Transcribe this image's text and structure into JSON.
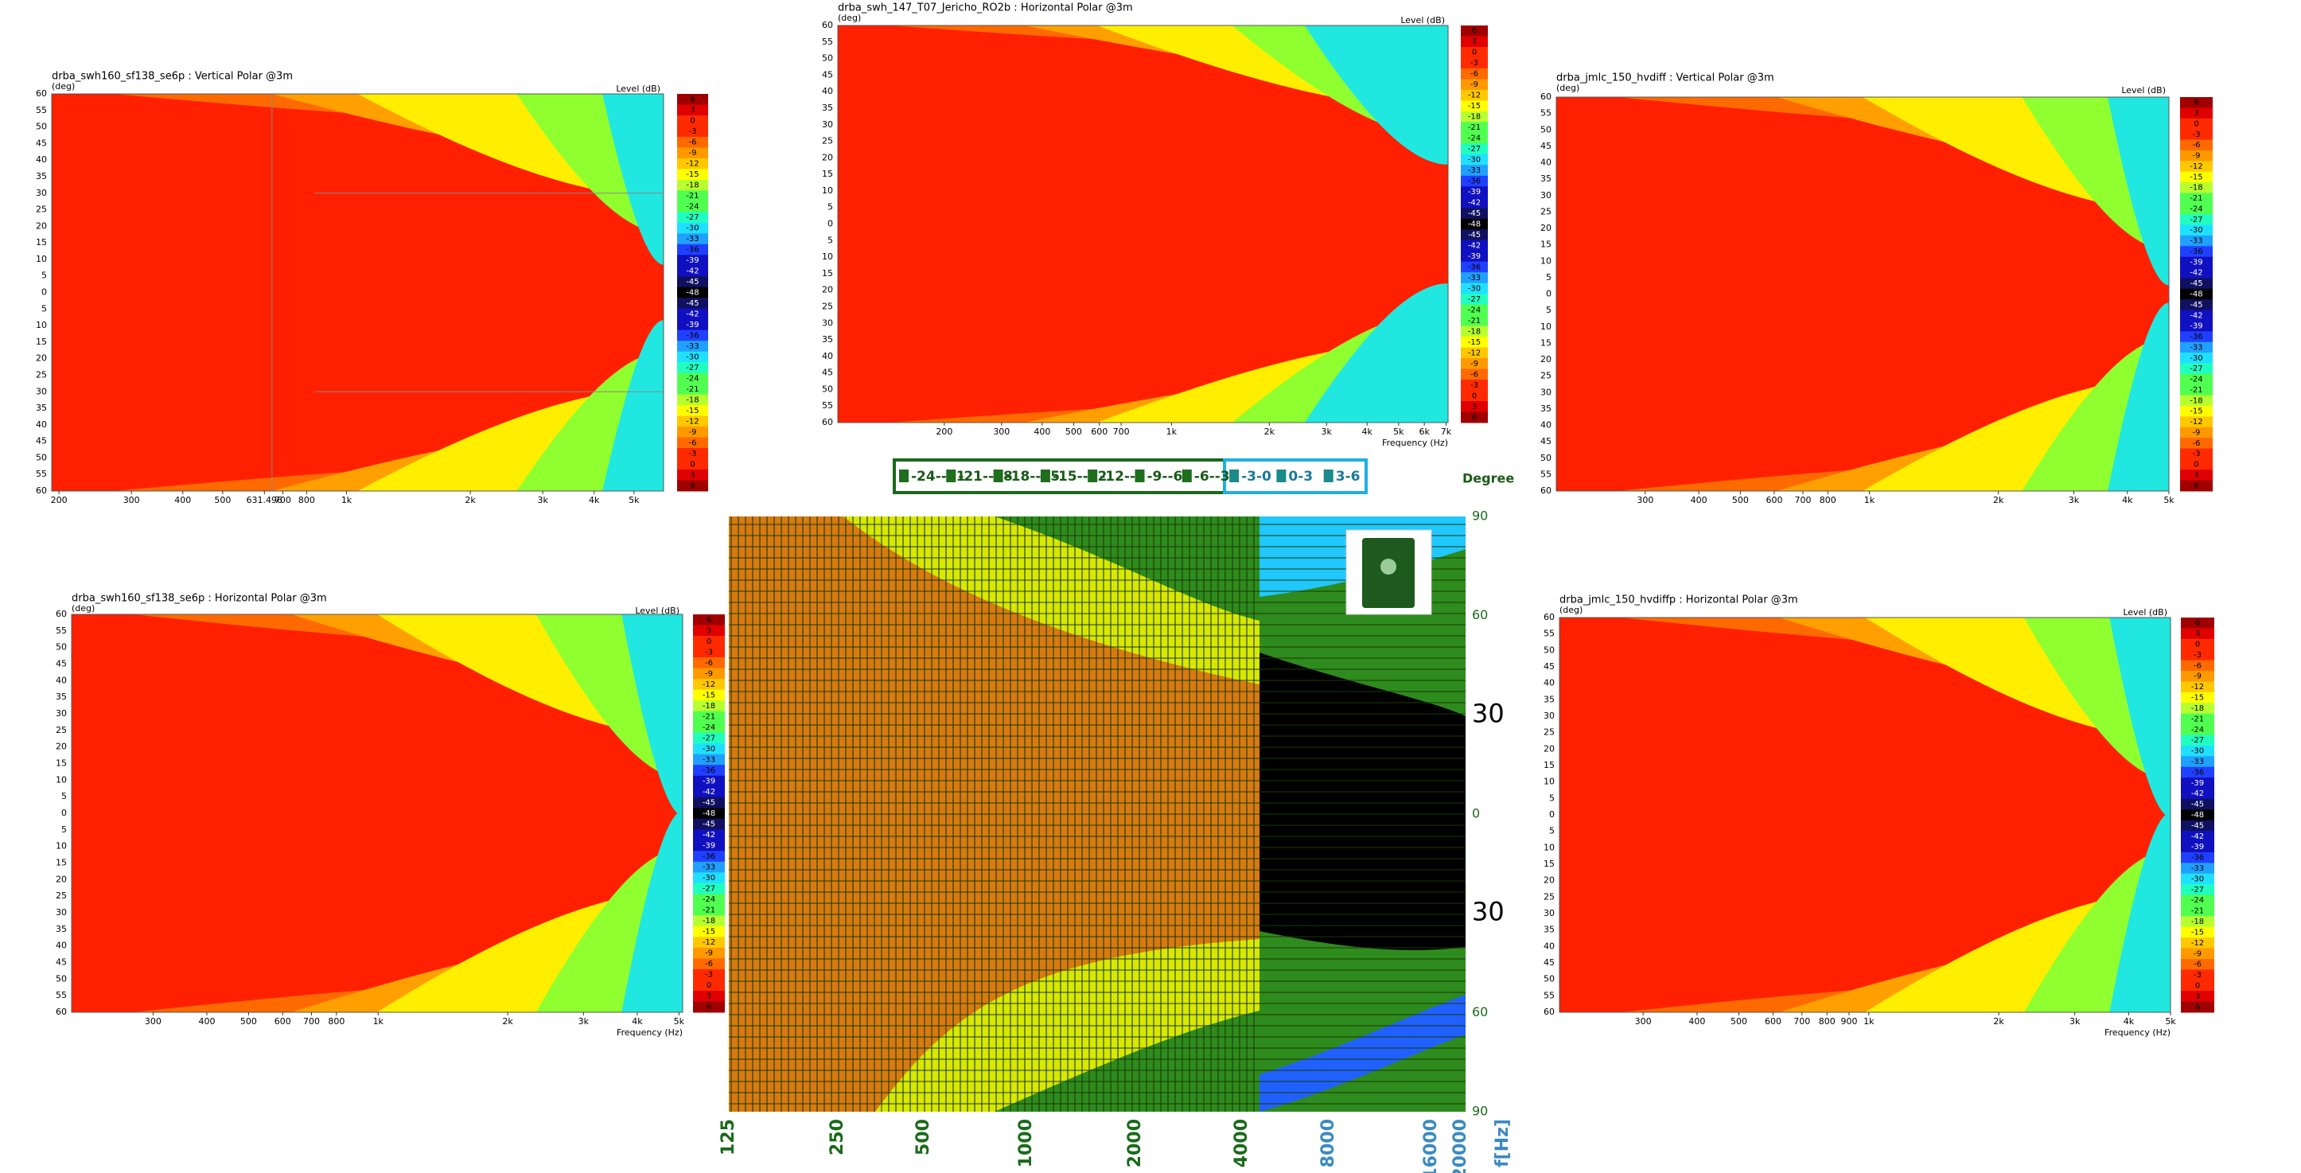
{
  "y_tick_labels": [
    "60",
    "55",
    "50",
    "45",
    "40",
    "35",
    "30",
    "25",
    "20",
    "15",
    "10",
    "5",
    "0",
    "5",
    "10",
    "15",
    "20",
    "25",
    "30",
    "35",
    "40",
    "45",
    "50",
    "55",
    "60"
  ],
  "colorbar_labels": [
    "6",
    "3",
    "0",
    "-3",
    "-6",
    "-9",
    "-12",
    "-15",
    "-18",
    "-21",
    "-24",
    "-27",
    "-30",
    "-33",
    "-36",
    "-39",
    "-42",
    "-45",
    "-48",
    "-45",
    "-42",
    "-39",
    "-36",
    "-33",
    "-30",
    "-27",
    "-24",
    "-21",
    "-18",
    "-15",
    "-12",
    "-9",
    "-6",
    "-3",
    "0",
    "3",
    "6"
  ],
  "panels": [
    {
      "title": "drba_swh160_sf138_se6p : Vertical Polar @3m",
      "y_unit": "(deg)",
      "level_label": "Level  (dB)",
      "x_tick_labels": [
        "200",
        "300",
        "400",
        "500",
        "631.496",
        "700",
        "800",
        "1k",
        "2k",
        "3k",
        "4k",
        "5k"
      ]
    },
    {
      "title": "drba_swh_147_T07_Jericho_RO2b : Horizontal Polar @3m",
      "y_unit": "(deg)",
      "level_label": "Level  (dB)",
      "x_tick_labels": [
        "200",
        "300",
        "400",
        "500",
        "600",
        "700",
        "1k",
        "2k",
        "3k",
        "4k",
        "5k",
        "6k",
        "7k"
      ],
      "x_axis_label": "Frequency  (Hz)"
    },
    {
      "title": "drba_jmlc_150_hvdiff : Vertical Polar @3m",
      "y_unit": "(deg)",
      "level_label": "Level  (dB)",
      "x_tick_labels": [
        "300",
        "400",
        "500",
        "600",
        "700",
        "800",
        "1k",
        "2k",
        "3k",
        "4k",
        "5k"
      ]
    },
    {
      "title": "drba_swh160_sf138_se6p : Horizontal Polar @3m",
      "y_unit": "(deg)",
      "level_label": "Level  (dB)",
      "x_tick_labels": [
        "300",
        "400",
        "500",
        "600",
        "700",
        "800",
        "1k",
        "2k",
        "3k",
        "4k",
        "5k"
      ],
      "x_axis_label": "Frequency  (Hz)"
    },
    {
      "title": "drba_jmlc_150_hvdiffp : Horizontal Polar @3m",
      "y_unit": "(deg)",
      "level_label": "Level  (dB)",
      "x_tick_labels": [
        "300",
        "400",
        "500",
        "600",
        "700",
        "800",
        "900",
        "1k",
        "2k",
        "3k",
        "4k",
        "5k"
      ],
      "x_axis_label": "Frequency  (Hz)"
    }
  ],
  "center_chart": {
    "legend": [
      "-24--21",
      "-21--18",
      "-18--15",
      "-15--12",
      "-12--9",
      "-9--6",
      "-6--3",
      "-3-0",
      "0-3",
      "3-6"
    ],
    "y_axis_title": "Degree",
    "y_tick_labels": [
      "90",
      "60",
      "30",
      "0",
      "30",
      "60",
      "90"
    ],
    "x_tick_labels": [
      "125",
      "250",
      "500",
      "1000",
      "2000",
      "4000",
      "8000",
      "16000",
      "20000",
      "f[Hz]"
    ]
  }
}
